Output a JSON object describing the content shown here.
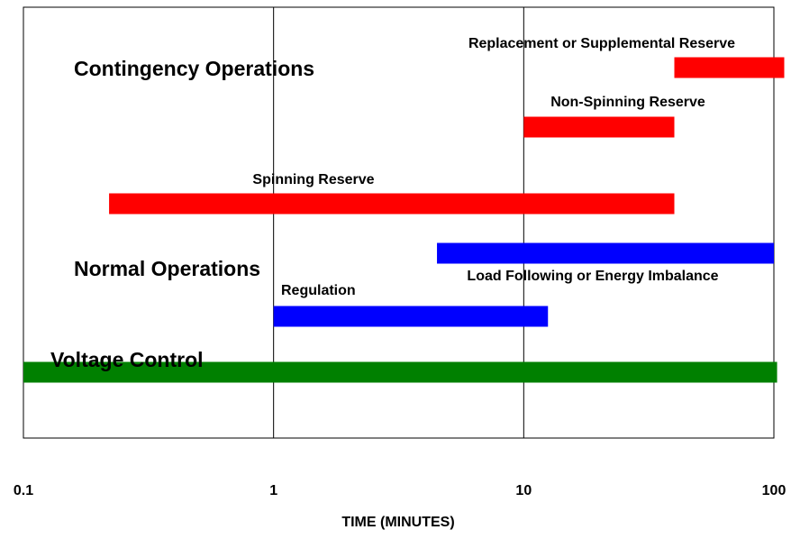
{
  "chart_data": {
    "type": "range-bar",
    "xlabel": "TIME (MINUTES)",
    "xlim": [
      0.1,
      100
    ],
    "xticks": [
      0.1,
      1,
      10,
      100
    ],
    "xscale": "log",
    "grid": true,
    "annotations": [
      "Contingency Operations",
      "Normal Operations",
      "Voltage Control"
    ],
    "bars": [
      {
        "label": "Replacement or Supplemental Reserve",
        "color": "#ff0000",
        "start": 40,
        "end": 110
      },
      {
        "label": "Non-Spinning Reserve",
        "color": "#ff0000",
        "start": 10,
        "end": 40
      },
      {
        "label": "Spinning Reserve",
        "color": "#ff0000",
        "start": 0.22,
        "end": 40
      },
      {
        "label": "Load Following or Energy Imbalance",
        "color": "#0000ff",
        "start": 4.5,
        "end": 100
      },
      {
        "label": "Regulation",
        "color": "#0000ff",
        "start": 1,
        "end": 12.5
      },
      {
        "label": null,
        "color": "#008000",
        "start": 0.1,
        "end": 103
      }
    ]
  }
}
